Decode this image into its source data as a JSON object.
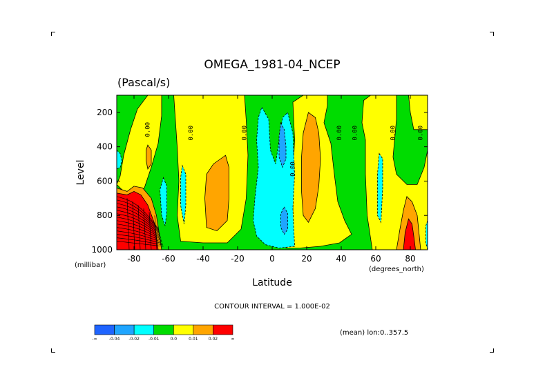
{
  "chart_data": {
    "type": "heatmap",
    "title": "OMEGA_1981-04_NCEP",
    "subtitle": "(Pascal/s)",
    "xlabel": "Latitude",
    "ylabel": "Level",
    "x_units": "(degrees_north)",
    "y_units": "(millibar)",
    "xlim": [
      -90,
      90
    ],
    "ylim": [
      1000,
      100
    ],
    "x_ticks": [
      -80,
      -60,
      -40,
      -20,
      0,
      20,
      40,
      60,
      80
    ],
    "x_tick_labels": [
      "-80",
      "-60",
      "-40",
      "-20",
      "0",
      "20",
      "40",
      "60",
      "80"
    ],
    "y_ticks": [
      200,
      400,
      600,
      800,
      1000
    ],
    "y_tick_labels": [
      "200",
      "400",
      "600",
      "800",
      "1000"
    ],
    "contour_interval_text": "CONTOUR INTERVAL = 1.000E-02",
    "note": "(mean) lon:0..357.5",
    "contour_label": "0.00",
    "contour_label_positions": [
      {
        "lat": -71,
        "p": 300
      },
      {
        "lat": -46,
        "p": 320
      },
      {
        "lat": -15,
        "p": 320
      },
      {
        "lat": 13,
        "p": 530
      },
      {
        "lat": 40,
        "p": 320
      },
      {
        "lat": 49,
        "p": 320
      },
      {
        "lat": 71,
        "p": 320
      },
      {
        "lat": 87,
        "p": 320
      }
    ],
    "colorbar": {
      "colors": [
        "#1f64ff",
        "#1fa5ff",
        "#00ffff",
        "#00dc00",
        "#ffff00",
        "#ffa500",
        "#ff0000"
      ],
      "labels": [
        "-∞",
        "-0.04",
        "-0.02",
        "-0.01",
        "0.0",
        "0.01",
        "0.02",
        "∞"
      ]
    },
    "regions": [
      {
        "name": "base-green",
        "level": "-0.01 to 0.0",
        "color": "#00dc00",
        "polygon": [
          [
            -90,
            100
          ],
          [
            90,
            100
          ],
          [
            90,
            1000
          ],
          [
            -90,
            1000
          ]
        ]
      },
      {
        "name": "yellow-south-upper",
        "level": "0.0 to 0.01",
        "color": "#ffff00",
        "polygon": [
          [
            -90,
            620
          ],
          [
            -88,
            570
          ],
          [
            -86,
            450
          ],
          [
            -82,
            300
          ],
          [
            -78,
            180
          ],
          [
            -72,
            100
          ],
          [
            -64,
            100
          ],
          [
            -64,
            220
          ],
          [
            -66,
            380
          ],
          [
            -70,
            520
          ],
          [
            -74,
            640
          ],
          [
            -79,
            680
          ],
          [
            -86,
            660
          ]
        ]
      },
      {
        "name": "yellow-southern-midlat",
        "level": "0.0 to 0.01",
        "color": "#ffff00",
        "polygon": [
          [
            -57,
            100
          ],
          [
            -16,
            100
          ],
          [
            -15,
            250
          ],
          [
            -14,
            450
          ],
          [
            -15,
            700
          ],
          [
            -18,
            880
          ],
          [
            -26,
            960
          ],
          [
            -40,
            960
          ],
          [
            -53,
            950
          ],
          [
            -55,
            800
          ],
          [
            -54,
            600
          ],
          [
            -55,
            400
          ],
          [
            -56,
            250
          ]
        ]
      },
      {
        "name": "yellow-tropics",
        "level": "0.0 to 0.01",
        "color": "#ffff00",
        "polygon": [
          [
            12,
            140
          ],
          [
            18,
            100
          ],
          [
            32,
            100
          ],
          [
            32,
            160
          ],
          [
            30,
            260
          ],
          [
            34,
            380
          ],
          [
            36,
            560
          ],
          [
            38,
            720
          ],
          [
            42,
            830
          ],
          [
            46,
            910
          ],
          [
            39,
            960
          ],
          [
            28,
            980
          ],
          [
            16,
            990
          ],
          [
            8,
            990
          ],
          [
            12,
            800
          ],
          [
            12,
            560
          ],
          [
            13,
            360
          ]
        ]
      },
      {
        "name": "yellow-north",
        "level": "0.0 to 0.01",
        "color": "#ffff00",
        "polygon": [
          [
            53,
            130
          ],
          [
            57,
            100
          ],
          [
            72,
            100
          ],
          [
            72,
            240
          ],
          [
            70,
            460
          ],
          [
            72,
            560
          ],
          [
            78,
            620
          ],
          [
            84,
            620
          ],
          [
            88,
            520
          ],
          [
            90,
            420
          ],
          [
            90,
            1000
          ],
          [
            58,
            1000
          ],
          [
            55,
            800
          ],
          [
            54,
            560
          ],
          [
            54,
            360
          ],
          [
            52,
            260
          ]
        ]
      },
      {
        "name": "yellow-north-top",
        "level": "0.0 to 0.01",
        "color": "#ffff00",
        "polygon": [
          [
            79,
            100
          ],
          [
            90,
            100
          ],
          [
            90,
            300
          ],
          [
            82,
            300
          ],
          [
            80,
            200
          ]
        ]
      },
      {
        "name": "cyan-south-pole",
        "level": "-0.02 to -0.01",
        "color": "#00ffff",
        "polygon": [
          [
            -90,
            420
          ],
          [
            -88,
            440
          ],
          [
            -87,
            480
          ],
          [
            -88,
            520
          ],
          [
            -90,
            530
          ]
        ]
      },
      {
        "name": "cyan-south-1",
        "level": "-0.02 to -0.01",
        "color": "#00ffff",
        "polygon": [
          [
            -63,
            580
          ],
          [
            -61,
            630
          ],
          [
            -61,
            780
          ],
          [
            -62,
            860
          ],
          [
            -64,
            800
          ],
          [
            -65,
            650
          ]
        ]
      },
      {
        "name": "cyan-south-2",
        "level": "-0.02 to -0.01",
        "color": "#00ffff",
        "polygon": [
          [
            -52,
            510
          ],
          [
            -50,
            560
          ],
          [
            -50,
            740
          ],
          [
            -51,
            850
          ],
          [
            -53,
            740
          ],
          [
            -53,
            580
          ]
        ]
      },
      {
        "name": "cyan-equator",
        "level": "-0.02 to -0.01",
        "color": "#00ffff",
        "polygon": [
          [
            -6,
            170
          ],
          [
            -2,
            240
          ],
          [
            -1,
            420
          ],
          [
            2,
            500
          ],
          [
            4,
            360
          ],
          [
            6,
            230
          ],
          [
            9,
            200
          ],
          [
            12,
            320
          ],
          [
            13,
            560
          ],
          [
            12,
            760
          ],
          [
            13,
            980
          ],
          [
            4,
            990
          ],
          [
            -4,
            970
          ],
          [
            -9,
            920
          ],
          [
            -11,
            830
          ],
          [
            -10,
            700
          ],
          [
            -8,
            520
          ],
          [
            -9,
            360
          ],
          [
            -8,
            230
          ]
        ]
      },
      {
        "name": "cyan-north-65",
        "level": "-0.02 to -0.01",
        "color": "#00ffff",
        "polygon": [
          [
            62,
            440
          ],
          [
            64,
            470
          ],
          [
            64,
            640
          ],
          [
            63,
            840
          ],
          [
            61,
            800
          ],
          [
            61,
            560
          ]
        ]
      },
      {
        "name": "cyan-north-pole",
        "level": "-0.02 to -0.01",
        "color": "#00ffff",
        "polygon": [
          [
            90,
            830
          ],
          [
            89,
            860
          ],
          [
            89,
            960
          ],
          [
            90,
            1000
          ]
        ]
      },
      {
        "name": "blue-equator",
        "level": "-0.04 to -0.02",
        "color": "#1fa5ff",
        "polygon": [
          [
            5,
            260
          ],
          [
            7,
            300
          ],
          [
            8,
            400
          ],
          [
            8,
            470
          ],
          [
            6,
            520
          ],
          [
            4,
            460
          ],
          [
            4,
            340
          ]
        ]
      },
      {
        "name": "blue-equator-lower",
        "level": "-0.04 to -0.02",
        "color": "#1fa5ff",
        "polygon": [
          [
            7,
            750
          ],
          [
            9,
            790
          ],
          [
            9,
            880
          ],
          [
            7,
            910
          ],
          [
            5,
            870
          ],
          [
            5,
            790
          ]
        ]
      },
      {
        "name": "orange-south-pole",
        "level": "0.01 to 0.02",
        "color": "#ffa500",
        "polygon": [
          [
            -90,
            640
          ],
          [
            -84,
            660
          ],
          [
            -80,
            630
          ],
          [
            -75,
            640
          ],
          [
            -70,
            700
          ],
          [
            -67,
            800
          ],
          [
            -64,
            1000
          ],
          [
            -90,
            1000
          ]
        ]
      },
      {
        "name": "orange-south-upper",
        "level": "0.01 to 0.02",
        "color": "#ffa500",
        "polygon": [
          [
            -72,
            390
          ],
          [
            -70,
            420
          ],
          [
            -70,
            500
          ],
          [
            -72,
            530
          ],
          [
            -73,
            480
          ],
          [
            -73,
            420
          ]
        ]
      },
      {
        "name": "orange-southern-midlat",
        "level": "0.01 to 0.02",
        "color": "#ffa500",
        "polygon": [
          [
            -27,
            450
          ],
          [
            -25,
            520
          ],
          [
            -25,
            700
          ],
          [
            -26,
            830
          ],
          [
            -32,
            890
          ],
          [
            -38,
            870
          ],
          [
            -39,
            700
          ],
          [
            -38,
            560
          ],
          [
            -34,
            500
          ]
        ]
      },
      {
        "name": "orange-tropics",
        "level": "0.01 to 0.02",
        "color": "#ffa500",
        "polygon": [
          [
            21,
            200
          ],
          [
            25,
            230
          ],
          [
            27,
            320
          ],
          [
            28,
            470
          ],
          [
            27,
            630
          ],
          [
            25,
            760
          ],
          [
            21,
            840
          ],
          [
            18,
            800
          ],
          [
            17,
            660
          ],
          [
            17,
            460
          ],
          [
            18,
            320
          ]
        ]
      },
      {
        "name": "orange-north-pole",
        "level": "0.01 to 0.02",
        "color": "#ffa500",
        "polygon": [
          [
            78,
            690
          ],
          [
            81,
            720
          ],
          [
            84,
            800
          ],
          [
            85,
            900
          ],
          [
            86,
            1000
          ],
          [
            72,
            1000
          ],
          [
            74,
            880
          ],
          [
            76,
            770
          ]
        ]
      },
      {
        "name": "red-south-pole",
        "level": "0.02 to ∞",
        "color": "#ff0000",
        "polygon": [
          [
            -90,
            670
          ],
          [
            -84,
            680
          ],
          [
            -80,
            660
          ],
          [
            -76,
            680
          ],
          [
            -72,
            740
          ],
          [
            -68,
            850
          ],
          [
            -66,
            1000
          ],
          [
            -90,
            1000
          ]
        ]
      },
      {
        "name": "red-north-pole",
        "level": "0.02 to ∞",
        "color": "#ff0000",
        "polygon": [
          [
            79,
            820
          ],
          [
            81,
            850
          ],
          [
            82,
            920
          ],
          [
            83,
            1000
          ],
          [
            76,
            1000
          ],
          [
            77,
            900
          ]
        ]
      }
    ]
  }
}
